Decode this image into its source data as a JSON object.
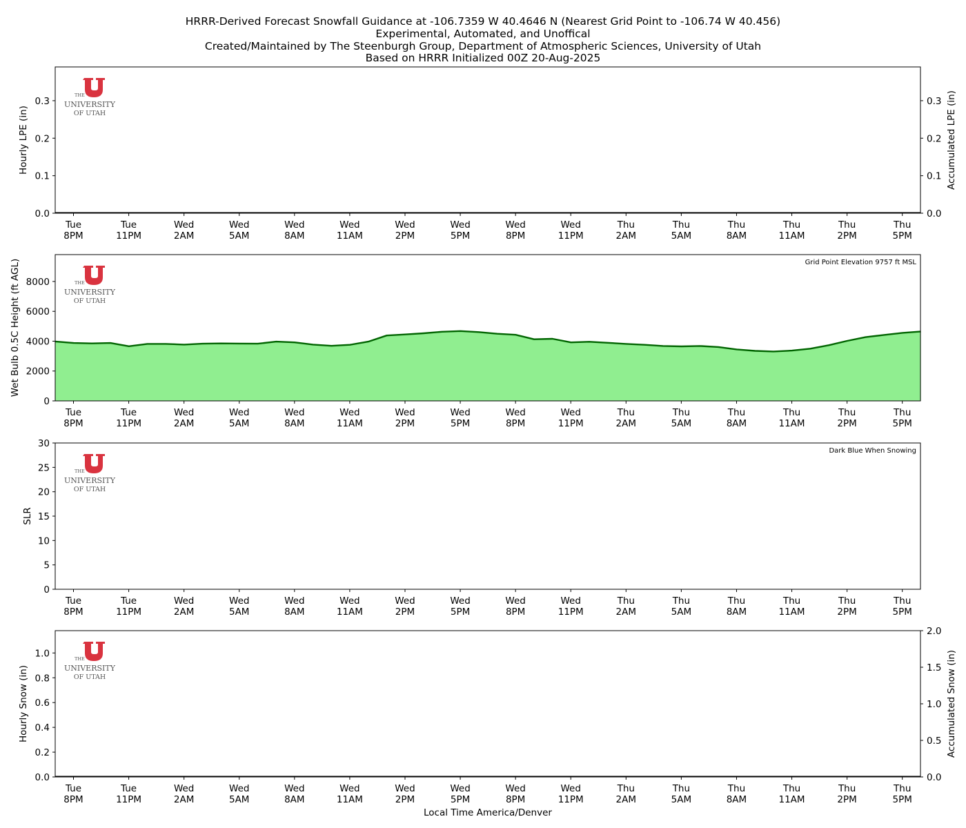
{
  "figure": {
    "title_lines": [
      "HRRR-Derived Forecast Snowfall Guidance at -106.7359 W 40.4646 N (Nearest Grid Point to -106.74 W 40.456)",
      "Experimental, Automated, and Unoffical",
      "Created/Maintained by The Steenburgh Group, Department of Atmospheric Sciences, University of Utah",
      "Based on HRRR Initialized 00Z 20-Aug-2025"
    ],
    "xlabel": "Local Time America/Denver",
    "logo": {
      "text_lines": [
        "THE",
        "UNIVERSITY",
        "OF UTAH"
      ],
      "color": "#d9333f"
    },
    "time_ticks": [
      {
        "top": "Tue",
        "bottom": "8PM"
      },
      {
        "top": "Tue",
        "bottom": "11PM"
      },
      {
        "top": "Wed",
        "bottom": "2AM"
      },
      {
        "top": "Wed",
        "bottom": "5AM"
      },
      {
        "top": "Wed",
        "bottom": "8AM"
      },
      {
        "top": "Wed",
        "bottom": "11AM"
      },
      {
        "top": "Wed",
        "bottom": "2PM"
      },
      {
        "top": "Wed",
        "bottom": "5PM"
      },
      {
        "top": "Wed",
        "bottom": "8PM"
      },
      {
        "top": "Wed",
        "bottom": "11PM"
      },
      {
        "top": "Thu",
        "bottom": "2AM"
      },
      {
        "top": "Thu",
        "bottom": "5AM"
      },
      {
        "top": "Thu",
        "bottom": "8AM"
      },
      {
        "top": "Thu",
        "bottom": "11AM"
      },
      {
        "top": "Thu",
        "bottom": "2PM"
      },
      {
        "top": "Thu",
        "bottom": "5PM"
      }
    ]
  },
  "chart_data": [
    {
      "type": "bar",
      "ylabel": "Hourly LPE (in)",
      "ylim": [
        0,
        0.39
      ],
      "yticks": [
        0.0,
        0.1,
        0.2,
        0.3
      ],
      "ytick_labels": [
        "0.0",
        "0.1",
        "0.2",
        "0.3"
      ],
      "y2label": "Accumulated LPE (in)",
      "y2lim": [
        0,
        0.39
      ],
      "y2ticks": [
        0.0,
        0.1,
        0.2,
        0.3
      ],
      "y2tick_labels": [
        "0.0",
        "0.1",
        "0.2",
        "0.3"
      ],
      "accumulated_values": [
        0,
        0
      ],
      "accumulated_color": "#000000"
    },
    {
      "type": "area",
      "ylabel": "Wet Bulb 0.5C Height (ft AGL)",
      "ylim": [
        0,
        9800
      ],
      "yticks": [
        0,
        2000,
        4000,
        6000,
        8000
      ],
      "ytick_labels": [
        "0",
        "2000",
        "4000",
        "6000",
        "8000"
      ],
      "annotation": "Grid Point Elevation 9757 ft MSL",
      "fill_color": "#90ee90",
      "line_color": "#006400",
      "values": [
        3980,
        3880,
        3850,
        3880,
        3660,
        3820,
        3820,
        3770,
        3830,
        3850,
        3840,
        3830,
        3970,
        3920,
        3770,
        3690,
        3760,
        3970,
        4380,
        4450,
        4530,
        4630,
        4680,
        4610,
        4500,
        4430,
        4130,
        4160,
        3920,
        3960,
        3890,
        3820,
        3760,
        3680,
        3650,
        3680,
        3610,
        3450,
        3350,
        3310,
        3370,
        3500,
        3730,
        4020,
        4270,
        4420,
        4560,
        4650
      ]
    },
    {
      "type": "bar",
      "ylabel": "SLR",
      "ylim": [
        0,
        30
      ],
      "yticks": [
        0,
        5,
        10,
        15,
        20,
        25,
        30
      ],
      "ytick_labels": [
        "0",
        "5",
        "10",
        "15",
        "20",
        "25",
        "30"
      ],
      "annotation": "Dark Blue When Snowing"
    },
    {
      "type": "bar",
      "ylabel": "Hourly Snow (in)",
      "ylim": [
        0,
        1.18
      ],
      "yticks": [
        0.0,
        0.2,
        0.4,
        0.6,
        0.8,
        1.0
      ],
      "ytick_labels": [
        "0.0",
        "0.2",
        "0.4",
        "0.6",
        "0.8",
        "1.0"
      ],
      "y2label": "Accumulated Snow (in)",
      "y2lim": [
        0,
        2.0
      ],
      "y2ticks": [
        0.0,
        0.5,
        1.0,
        1.5,
        2.0
      ],
      "y2tick_labels": [
        "0.0",
        "0.5",
        "1.0",
        "1.5",
        "2.0"
      ],
      "accumulated_values": [
        0,
        0
      ],
      "accumulated_color": "#000000"
    }
  ]
}
